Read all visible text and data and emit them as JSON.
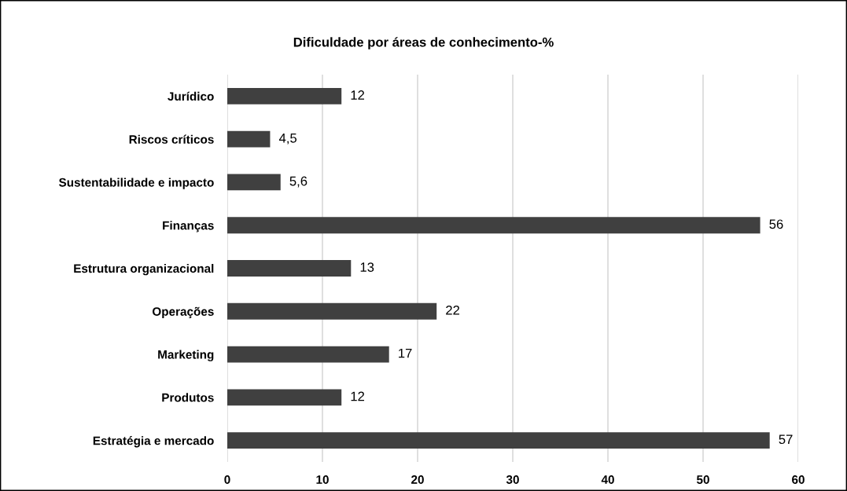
{
  "chart_data": {
    "type": "bar",
    "orientation": "horizontal",
    "title": "Dificuldade por áreas de conhecimento-%",
    "categories": [
      "Jurídico",
      "Riscos críticos",
      "Sustentabilidade e impacto",
      "Finanças",
      "Estrutura organizacional",
      "Operações",
      "Marketing",
      "Produtos",
      "Estratégia e mercado"
    ],
    "values": [
      12,
      4.5,
      5.6,
      56,
      13,
      22,
      17,
      12,
      57
    ],
    "value_labels": [
      "12",
      "4,5",
      "5,6",
      "56",
      "13",
      "22",
      "17",
      "12",
      "57"
    ],
    "color": "#404040",
    "xlim": [
      0,
      60
    ],
    "xticks": [
      0,
      10,
      20,
      30,
      40,
      50,
      60
    ],
    "grid": "x"
  }
}
